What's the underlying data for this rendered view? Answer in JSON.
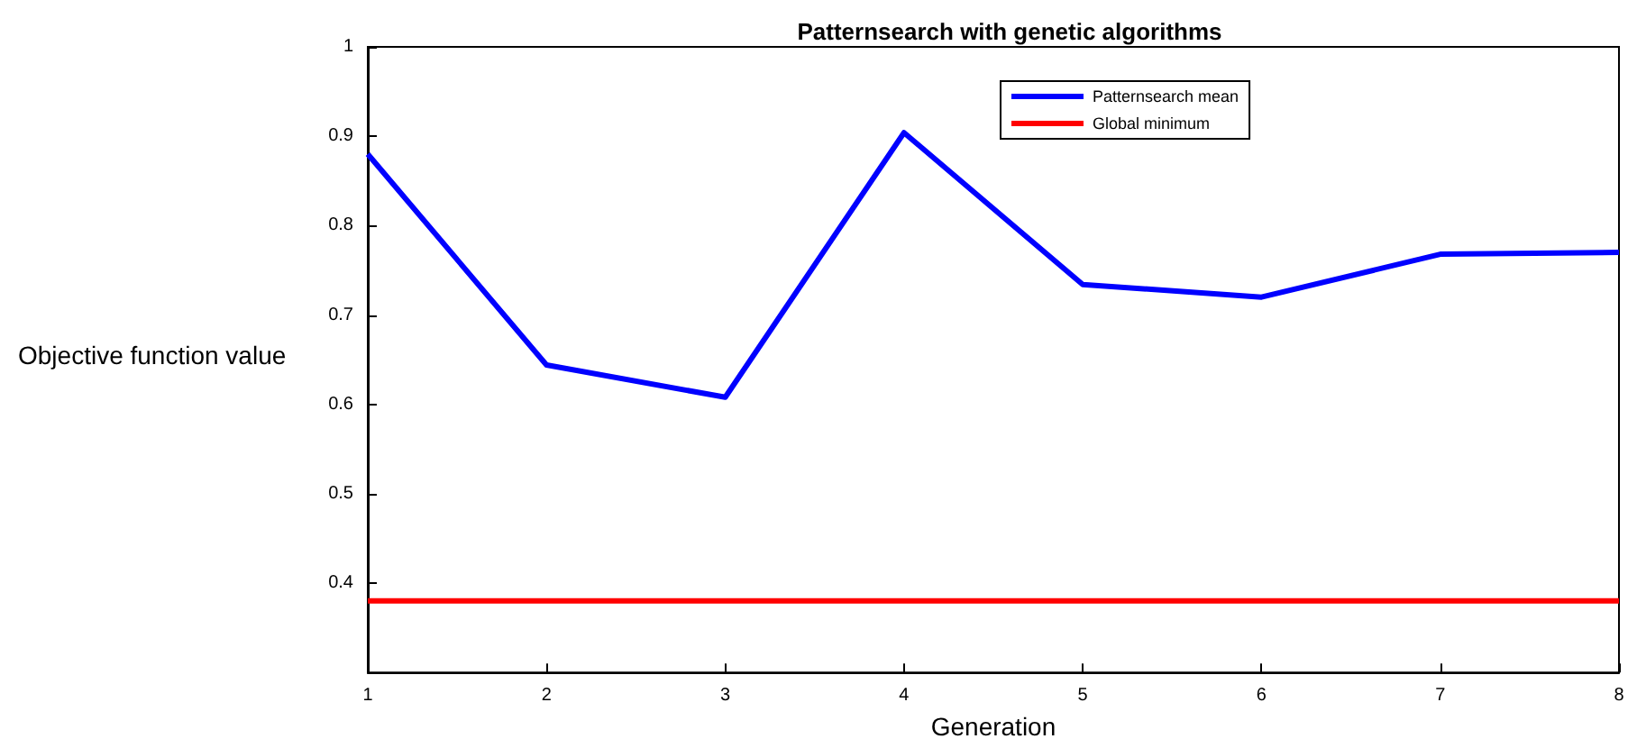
{
  "chart_data": {
    "type": "line",
    "title": "Patternsearch with genetic algorithms",
    "xlabel": "Generation",
    "ylabel": "Objective function value",
    "x": [
      1,
      2,
      3,
      4,
      5,
      6,
      7,
      8
    ],
    "series": [
      {
        "name": "Patternsearch mean",
        "color": "#0000ff",
        "values": [
          0.88,
          0.644,
          0.608,
          0.904,
          0.734,
          0.72,
          0.768,
          0.77
        ]
      },
      {
        "name": "Global minimum",
        "color": "#ff0000",
        "x": [
          1,
          8
        ],
        "values": [
          0.38,
          0.38
        ]
      }
    ],
    "xlim": [
      1,
      8
    ],
    "xticks": [
      1,
      2,
      3,
      4,
      5,
      6,
      7,
      8
    ],
    "ylim": [
      0.3,
      1
    ],
    "yticks": [
      0.4,
      0.5,
      0.6,
      0.7,
      0.8,
      0.9,
      1
    ],
    "grid": false,
    "legend": "top right",
    "marker": "none",
    "line_style": "solid"
  }
}
